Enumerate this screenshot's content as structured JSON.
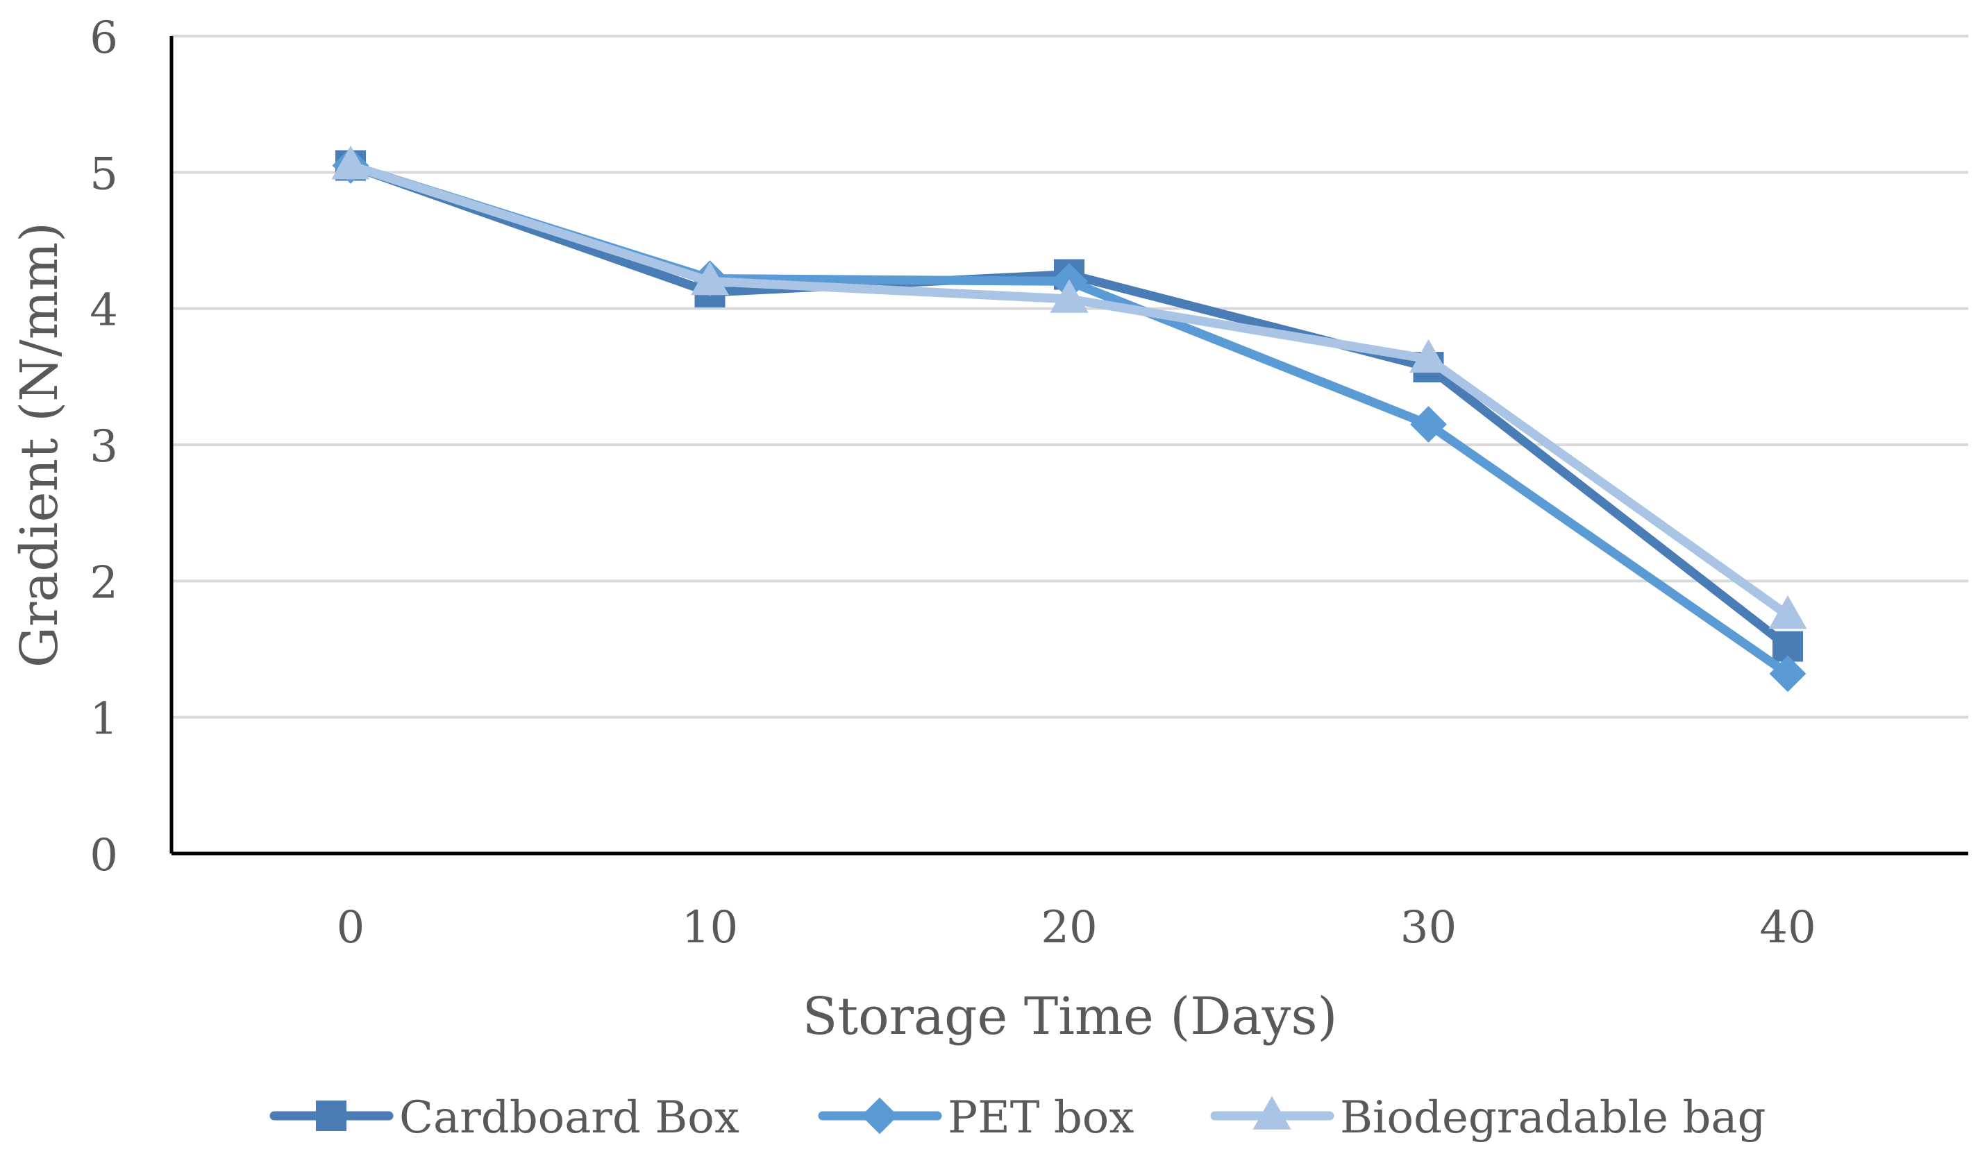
{
  "chart_data": {
    "type": "line",
    "title": "",
    "xlabel": "Storage Time (Days)",
    "ylabel": "Gradient (N/mm)",
    "categories": [
      "0",
      "10",
      "20",
      "30",
      "40"
    ],
    "x": [
      0,
      10,
      20,
      30,
      40
    ],
    "ylim": [
      0,
      6
    ],
    "yticks": [
      "0",
      "1",
      "2",
      "3",
      "4",
      "5",
      "6"
    ],
    "grid": true,
    "legend_position": "bottom",
    "series": [
      {
        "name": "Cardboard Box",
        "values": [
          5.05,
          4.12,
          4.25,
          3.57,
          1.52
        ],
        "color": "#4a7db5",
        "marker": "square"
      },
      {
        "name": "PET box",
        "values": [
          5.05,
          4.22,
          4.2,
          3.15,
          1.32
        ],
        "color": "#5b9bd5",
        "marker": "diamond"
      },
      {
        "name": "Biodegradable bag",
        "values": [
          5.05,
          4.2,
          4.07,
          3.63,
          1.75
        ],
        "color": "#a9c4e4",
        "marker": "triangle"
      }
    ]
  }
}
